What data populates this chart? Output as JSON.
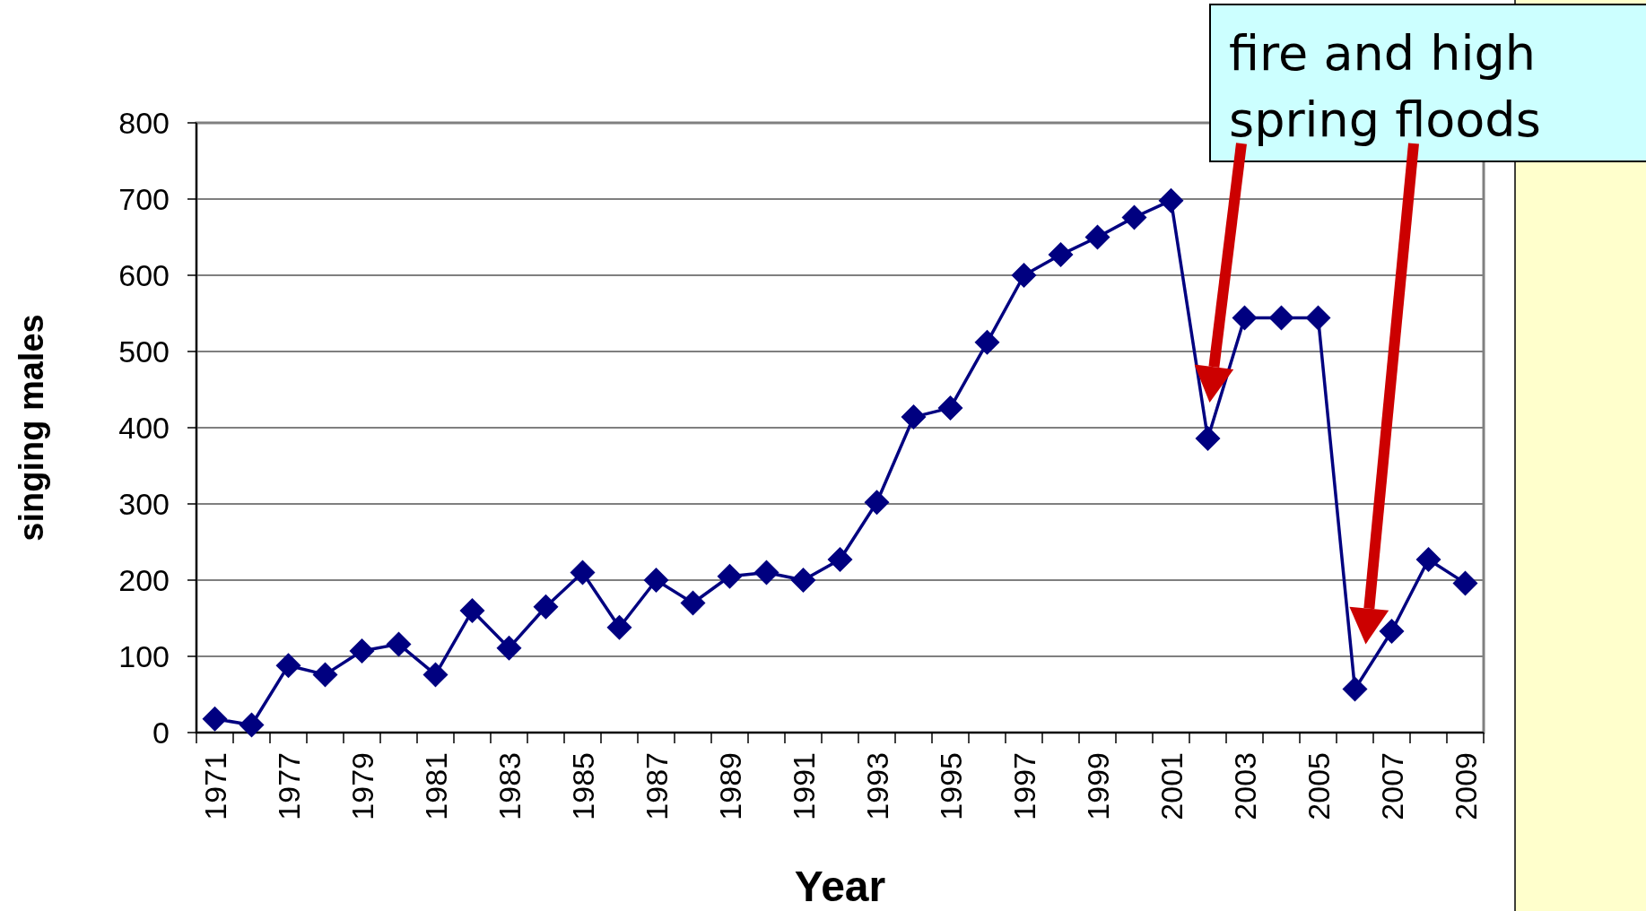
{
  "chart_data": {
    "type": "line",
    "xlabel": "Year",
    "ylabel": "singing males",
    "categories": [
      "1971",
      null,
      "1977",
      null,
      "1979",
      null,
      "1981",
      null,
      "1983",
      null,
      "1985",
      null,
      "1987",
      null,
      "1989",
      null,
      "1991",
      null,
      "1993",
      null,
      "1995",
      null,
      "1997",
      null,
      "1999",
      null,
      "2001",
      null,
      "2003",
      null,
      "2005",
      null,
      "2007",
      null,
      "2009"
    ],
    "series": [
      {
        "color": "#000080",
        "values": [
          18,
          10,
          88,
          76,
          107,
          116,
          76,
          160,
          111,
          165,
          210,
          138,
          200,
          170,
          205,
          210,
          200,
          227,
          302,
          414,
          426,
          512,
          600,
          627,
          650,
          676,
          698,
          386,
          544,
          544,
          544,
          57,
          133,
          227,
          196
        ]
      }
    ],
    "ylim": [
      0,
      800
    ],
    "yticks": [
      0,
      100,
      200,
      300,
      400,
      500,
      600,
      700,
      800
    ],
    "grid": "y",
    "marker": "diamond",
    "line_style": "solid",
    "annotations": [
      "fire and high spring floods"
    ]
  }
}
